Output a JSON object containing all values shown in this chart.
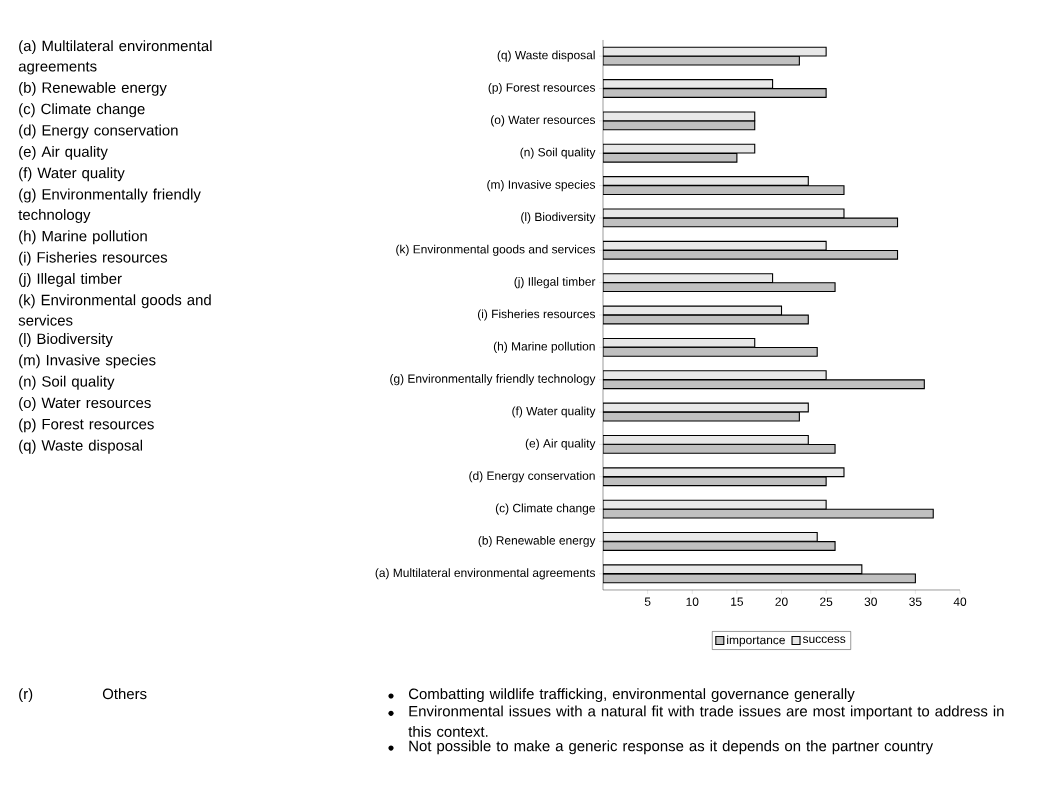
{
  "chart_data": {
    "type": "bar",
    "orientation": "horizontal",
    "categories": [
      "(q) Waste disposal",
      "(p) Forest resources",
      "(o) Water resources",
      "(n) Soil quality",
      "(m) Invasive species",
      "(l) Biodiversity",
      "(k) Environmental goods and services",
      "(j) Illegal timber",
      "(i) Fisheries resources",
      "(h) Marine pollution",
      "(g) Environmentally friendly technology",
      "(f) Water quality",
      "(e) Air quality",
      "(d) Energy conservation",
      "(c) Climate change",
      "(b) Renewable energy",
      "(a) Multilateral environmental agreements"
    ],
    "series": [
      {
        "name": "importance",
        "color": "#c0c0c0",
        "values": [
          22,
          25,
          17,
          15,
          27,
          33,
          33,
          26,
          23,
          24,
          36,
          22,
          26,
          25,
          37,
          26,
          35
        ]
      },
      {
        "name": "success",
        "color": "#e8e8e8",
        "values": [
          25,
          19,
          17,
          17,
          23,
          27,
          25,
          19,
          20,
          17,
          25,
          23,
          23,
          27,
          25,
          24,
          29
        ]
      }
    ],
    "xlim": [
      0,
      40
    ],
    "xticks": [
      5,
      10,
      15,
      20,
      25,
      30,
      35,
      40
    ],
    "legend": "bottom",
    "grid": false,
    "annotations": [
      "(a) Multilateral environmental agreements",
      "(b) Renewable energy",
      "(c) Climate change",
      "(d) Energy conservation",
      "(e) Air quality",
      "(f) Water quality",
      "(g) Environmentally friendly technology",
      "(h) Marine pollution",
      "(i) Fisheries resources",
      "(j) Illegal timber",
      "(k) Environmental goods and services",
      "(l) Biodiversity",
      "(m) Invasive species",
      "(n) Soil quality",
      "(o) Water resources",
      "(p) Forest resources",
      "(q) Waste disposal",
      "(r)",
      "Others",
      "Combatting wildlife trafficking, environmental governance generally",
      "Environmental issues with a natural fit with trade issues are most important to address in this context.",
      "Not possible to make a generic response as it depends on the partner country"
    ]
  }
}
